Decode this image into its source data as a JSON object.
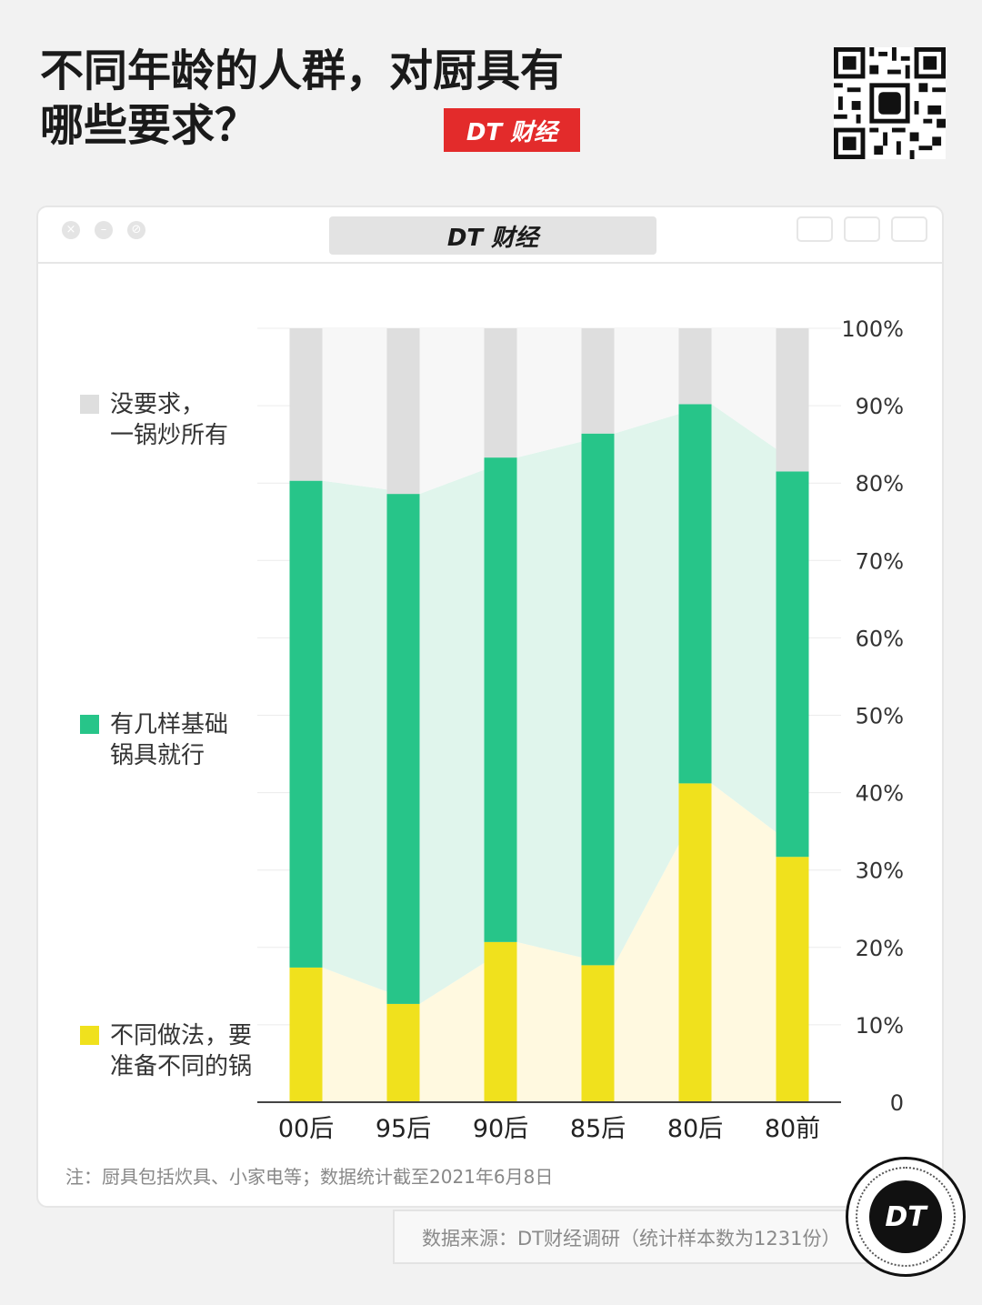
{
  "header": {
    "title_line1": "不同年龄的人群，对厨具有",
    "title_line2": "哪些要求？",
    "brand_tag": "DT 财经"
  },
  "window": {
    "address_bar": "DT 财经"
  },
  "legend": [
    {
      "label": "没要求，\n一锅炒所有",
      "color": "#dedede"
    },
    {
      "label": "有几样基础\n锅具就行",
      "color": "#27c589"
    },
    {
      "label": "不同做法，要\n准备不同的锅",
      "color": "#f0e11d"
    }
  ],
  "chart_data": {
    "type": "bar",
    "stacked": true,
    "categories": [
      "00后",
      "95后",
      "90后",
      "85后",
      "80后",
      "80前"
    ],
    "series": [
      {
        "name": "不同做法，要准备不同的锅",
        "color": "#f0e11d",
        "values": [
          17.4,
          12.7,
          20.7,
          17.7,
          41.2,
          31.7
        ]
      },
      {
        "name": "有几样基础锅具就行",
        "color": "#27c589",
        "values": [
          62.9,
          65.9,
          62.6,
          68.7,
          49.0,
          49.8
        ]
      },
      {
        "name": "没要求，一锅炒所有",
        "color": "#dedede",
        "values": [
          19.7,
          21.4,
          16.7,
          13.6,
          9.8,
          18.5
        ]
      }
    ],
    "y_ticks": [
      "0",
      "10%",
      "20%",
      "30%",
      "40%",
      "50%",
      "60%",
      "70%",
      "80%",
      "90%",
      "100%"
    ],
    "ylim": [
      0,
      100
    ],
    "y_axis_side": "right",
    "grid": true
  },
  "footer": {
    "note": "注：厨具包括炊具、小家电等；数据统计截至2021年6月8日",
    "source": "数据来源：DT财经调研（统计样本数为1231份）",
    "badge": "DT"
  }
}
